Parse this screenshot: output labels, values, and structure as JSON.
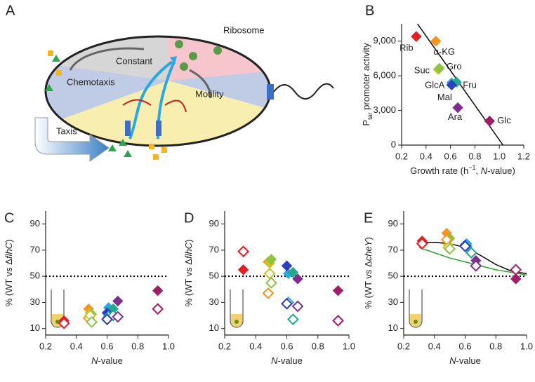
{
  "diagram": {
    "panel": "A",
    "labels": [
      "Ribosome",
      "Constant",
      "Chemotaxis",
      "Motility",
      "Taxis"
    ]
  },
  "chart_data": [
    {
      "type": "scatter",
      "panel": "B",
      "xlabel": [
        "Growth rate (h",
        "−1",
        ", ",
        "N",
        "-value)"
      ],
      "ylabel": [
        "P",
        "tar",
        " promoter activity"
      ],
      "xlim": [
        0.2,
        1.2
      ],
      "xticks": [
        0.2,
        0.4,
        0.6,
        0.8,
        {
          "value": 1,
          "label": "1.0"
        },
        1.2
      ],
      "ylim": [
        0,
        10500
      ],
      "yticks": [
        0,
        {
          "value": 3000,
          "label": "3,000"
        },
        {
          "value": 6000,
          "label": "6,000"
        },
        {
          "value": 9000,
          "label": "9,000"
        }
      ],
      "series": [
        {
          "name": "Rib",
          "color": "#e31e24",
          "x": [
            0.32
          ],
          "values": [
            9400
          ]
        },
        {
          "name": "α-KG",
          "color": "#f7941d",
          "x": [
            0.48
          ],
          "values": [
            9000
          ]
        },
        {
          "name": "Suc",
          "color": "#c9c22a",
          "x": [
            0.5
          ],
          "values": [
            6550
          ]
        },
        {
          "name": "Gro",
          "color": "#8cc63f",
          "x": [
            0.51
          ],
          "values": [
            6650
          ]
        },
        {
          "name": "GlcA",
          "color": "#27a9e1",
          "x": [
            0.61
          ],
          "values": [
            5400
          ]
        },
        {
          "name": "Fru",
          "color": "#26a88e",
          "x": [
            0.65
          ],
          "values": [
            5450
          ]
        },
        {
          "name": "Mal",
          "color": "#2b3fbf",
          "x": [
            0.61
          ],
          "values": [
            5200
          ]
        },
        {
          "name": "Ara",
          "color": "#7e2f8e",
          "x": [
            0.66
          ],
          "values": [
            3240
          ]
        },
        {
          "name": "Glc",
          "color": "#9e1f63",
          "x": [
            0.92
          ],
          "values": [
            2080
          ]
        }
      ],
      "fit": {
        "color": "#000000",
        "x": [
          0.33,
          1.03
        ],
        "y": [
          10500,
          0
        ]
      }
    },
    {
      "type": "scatter",
      "panel": "C",
      "xlabel": [
        "N",
        "-value"
      ],
      "ylabel": [
        "% (WT vs Δ",
        "flhC",
        ")"
      ],
      "xlim": [
        0.2,
        1.0
      ],
      "xticks": [
        0.2,
        0.4,
        0.6,
        0.8,
        {
          "value": 1,
          "label": "1.0"
        }
      ],
      "ylim": [
        5,
        100
      ],
      "yticks": [
        10,
        30,
        50,
        70,
        90
      ],
      "hline": 50,
      "x": [
        0.32,
        0.48,
        0.49,
        0.5,
        0.61,
        0.64,
        0.6,
        0.67,
        0.93
      ],
      "colors": [
        "#e31e24",
        "#f7941d",
        "#c9c22a",
        "#8cc63f",
        "#27a9e1",
        "#26a88e",
        "#2b3fbf",
        "#7e2f8e",
        "#9e1f63"
      ],
      "series": [
        {
          "marker": "filled",
          "values": [
            16,
            25,
            22,
            21,
            26,
            25,
            22,
            31,
            39
          ]
        },
        {
          "marker": "open",
          "values": [
            14,
            18,
            20,
            15,
            19,
            20,
            17,
            19,
            25
          ]
        }
      ],
      "tube": "#6b8e23"
    },
    {
      "type": "scatter",
      "panel": "D",
      "xlabel": [
        "N",
        "-value"
      ],
      "ylabel": [
        "% (WT vs Δ",
        "flhC",
        ")"
      ],
      "xlim": [
        0.2,
        1.0
      ],
      "xticks": [
        0.2,
        0.4,
        0.6,
        0.8,
        {
          "value": 1,
          "label": "1.0"
        }
      ],
      "ylim": [
        5,
        100
      ],
      "yticks": [
        10,
        30,
        50,
        70,
        90
      ],
      "hline": 50,
      "x": [
        0.32,
        0.48,
        0.49,
        0.5,
        0.61,
        0.64,
        0.6,
        0.67,
        0.93
      ],
      "colors": [
        "#e31e24",
        "#f7941d",
        "#c9c22a",
        "#8cc63f",
        "#27a9e1",
        "#26a88e",
        "#2b3fbf",
        "#7e2f8e",
        "#9e1f63"
      ],
      "series": [
        {
          "marker": "filled",
          "values": [
            55,
            61,
            60,
            63,
            52,
            53,
            58,
            48,
            39
          ]
        },
        {
          "marker": "open",
          "values": [
            69,
            37,
            52,
            45,
            30,
            17,
            29,
            27,
            16
          ]
        }
      ],
      "tube": "#6b8e23"
    },
    {
      "type": "scatter",
      "panel": "E",
      "xlabel": [
        "N",
        "-value"
      ],
      "ylabel": [
        "% (WT vs Δ",
        "cheY",
        ")"
      ],
      "xlim": [
        0.2,
        1.0
      ],
      "xticks": [
        0.2,
        0.4,
        0.6,
        0.8,
        {
          "value": 1,
          "label": "1.0"
        }
      ],
      "ylim": [
        5,
        100
      ],
      "yticks": [
        10,
        30,
        50,
        70,
        90
      ],
      "hline": 50,
      "x": [
        0.32,
        0.48,
        0.49,
        0.5,
        0.61,
        0.64,
        0.6,
        0.67,
        0.93
      ],
      "colors": [
        "#e31e24",
        "#f7941d",
        "#c9c22a",
        "#8cc63f",
        "#27a9e1",
        "#26a88e",
        "#2b3fbf",
        "#7e2f8e",
        "#9e1f63"
      ],
      "series": [
        {
          "marker": "filled",
          "values": [
            77,
            83,
            74,
            79,
            75,
            68,
            74,
            62,
            48
          ]
        },
        {
          "marker": "open",
          "values": [
            75,
            78,
            72,
            71,
            73,
            68,
            73,
            58,
            55
          ]
        }
      ],
      "curves": [
        {
          "color": "#000000",
          "x": [
            0.3,
            0.4,
            0.5,
            0.6,
            0.7,
            0.8,
            0.9,
            1.0
          ],
          "y": [
            76,
            76,
            75,
            72,
            66,
            59,
            54,
            52
          ]
        },
        {
          "color": "#2ca02c",
          "x": [
            0.3,
            0.4,
            0.5,
            0.6,
            0.7,
            0.8,
            0.9,
            1.0
          ],
          "y": [
            72,
            68,
            64,
            61,
            58,
            55,
            53,
            51
          ]
        }
      ],
      "tube": "#6b8e23"
    }
  ]
}
